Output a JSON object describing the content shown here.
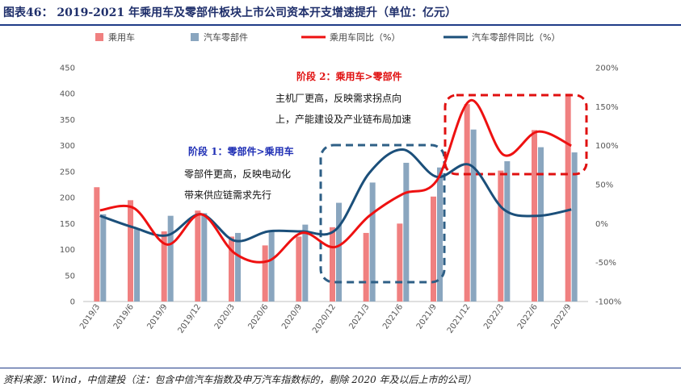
{
  "title": "图表46： 2019-2021 年乘用车及零部件板块上市公司资本开支增速提升（单位：亿元）",
  "source": "资料来源：Wind，中信建投（注：包含中信汽车指数及申万汽车指数标的，剔除 2020 年及以后上市的公司）",
  "colors": {
    "bar_passenger": "#f08080",
    "bar_parts": "#8aa6bf",
    "line_passenger": "#ee1111",
    "line_parts": "#1b4f7a",
    "stage1_head": "#1f2fb5",
    "stage2_head": "#e01010",
    "stage1_box": "#2e5f86",
    "stage2_box": "#e01010"
  },
  "annotations": {
    "stage1": {
      "head": "阶段 1：零部件>乘用车",
      "line1": "零部件更高，反映电动化",
      "line2": "带来供应链需求先行"
    },
    "stage2": {
      "head": "阶段 2：乘用车>零部件",
      "line1": "主机厂更高，反映需求拐点向",
      "line2": "上，产能建设及产业链布局加速"
    }
  },
  "chart_data": {
    "type": "bar",
    "title": "2019-2021 年乘用车及零部件板块上市公司资本开支增速提升（单位：亿元）",
    "categories": [
      "2019/3",
      "2019/6",
      "2019/9",
      "2019/12",
      "2020/3",
      "2020/6",
      "2020/9",
      "2020/12",
      "2021/3",
      "2021/6",
      "2021/9",
      "2021/12",
      "2022/3",
      "2022/6",
      "2022/9"
    ],
    "series": [
      {
        "name": "乘用车",
        "kind": "bar",
        "axis": "left",
        "values": [
          220,
          195,
          135,
          175,
          125,
          108,
          125,
          143,
          132,
          150,
          202,
          380,
          252,
          330,
          400
        ]
      },
      {
        "name": "汽车零部件",
        "kind": "bar",
        "axis": "left",
        "values": [
          168,
          140,
          165,
          170,
          132,
          137,
          148,
          190,
          229,
          267,
          258,
          331,
          270,
          297,
          287
        ]
      },
      {
        "name": "乘用车同比（%）",
        "kind": "line",
        "axis": "right",
        "values": [
          17,
          20,
          -27,
          12,
          -38,
          -48,
          -12,
          -30,
          10,
          38,
          55,
          158,
          88,
          118,
          100
        ]
      },
      {
        "name": "汽车零部件同比（%）",
        "kind": "line",
        "axis": "right",
        "values": [
          10,
          -5,
          -15,
          12,
          -22,
          -10,
          -10,
          -8,
          65,
          95,
          60,
          75,
          18,
          10,
          18
        ]
      }
    ],
    "left_axis": {
      "min": 0,
      "max": 450,
      "ticks": [
        0,
        50,
        100,
        150,
        200,
        250,
        300,
        350,
        400,
        450
      ]
    },
    "right_axis": {
      "min": -100,
      "max": 200,
      "ticks": [
        "-100%",
        "-50%",
        "0%",
        "50%",
        "100%",
        "150%",
        "200%"
      ]
    },
    "legend": [
      "乘用车",
      "汽车零部件",
      "乘用车同比（%）",
      "汽车零部件同比（%）"
    ],
    "legend_position": "top"
  }
}
